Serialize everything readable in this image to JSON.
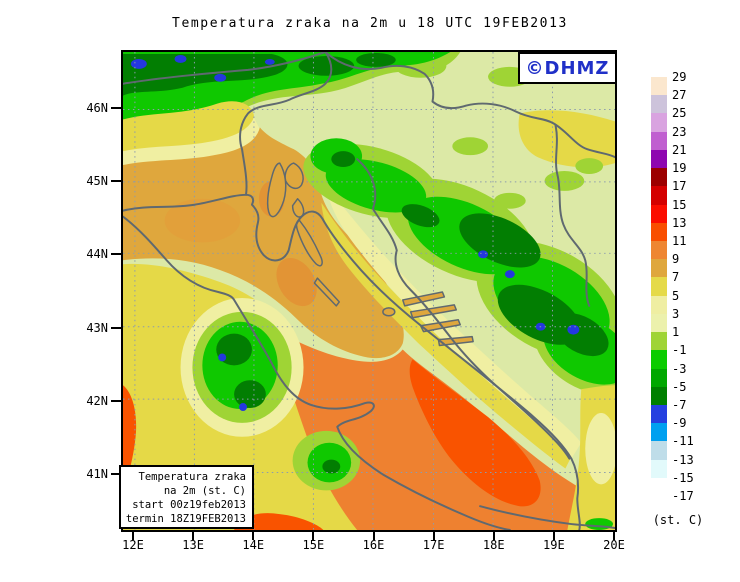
{
  "title": "Temperatura zraka na 2m u 18 UTC 19FEB2013",
  "logo": {
    "label": "©DHMZ",
    "color": "#2030C8"
  },
  "axes": {
    "lat": [
      "46N",
      "45N",
      "44N",
      "43N",
      "42N",
      "41N"
    ],
    "lon": [
      "12E",
      "13E",
      "14E",
      "15E",
      "16E",
      "17E",
      "18E",
      "19E",
      "20E"
    ]
  },
  "colorbar": {
    "unit": "(st. C)",
    "labels": [
      "29",
      "27",
      "25",
      "23",
      "21",
      "19",
      "17",
      "15",
      "13",
      "11",
      "9",
      "7",
      "5",
      "3",
      "1",
      "-1",
      "-3",
      "-5",
      "-7",
      "-9",
      "-11",
      "-13",
      "-15",
      "-17"
    ],
    "segment_colors": [
      "#FBE7CE",
      "#CDC3DB",
      "#D9A3E0",
      "#C05FD0",
      "#8E06B0",
      "#9C0000",
      "#D40000",
      "#FB0D00",
      "#F94E00",
      "#EE8632",
      "#DFA73D",
      "#E5DA49",
      "#EFEEA2",
      "#ECF1AC",
      "#9FD435",
      "#0ACC00",
      "#00A800",
      "#008000",
      "#2540E0",
      "#00A0F0",
      "#BFDDE9",
      "#E2FAFB",
      "#FFFFFF"
    ]
  },
  "info_box": {
    "lines": [
      "Temperatura zraka",
      "na 2m (st. C)",
      "start 00z19feb2013",
      "termin 18Z19FEB2013"
    ]
  },
  "map_colors": {
    "base": "#DCE9A6",
    "chartreuse": "#9FD435",
    "green": "#0FC800",
    "dark_green": "#027E02",
    "blue_spot": "#2438DF",
    "yellow": "#E5D947",
    "pale_yellow": "#F0EFA2",
    "ochre": "#DFA73D",
    "orange": "#EE8130",
    "orange_red": "#F95300",
    "coastline": "#5F6970",
    "grid": "#8C9BAD"
  }
}
